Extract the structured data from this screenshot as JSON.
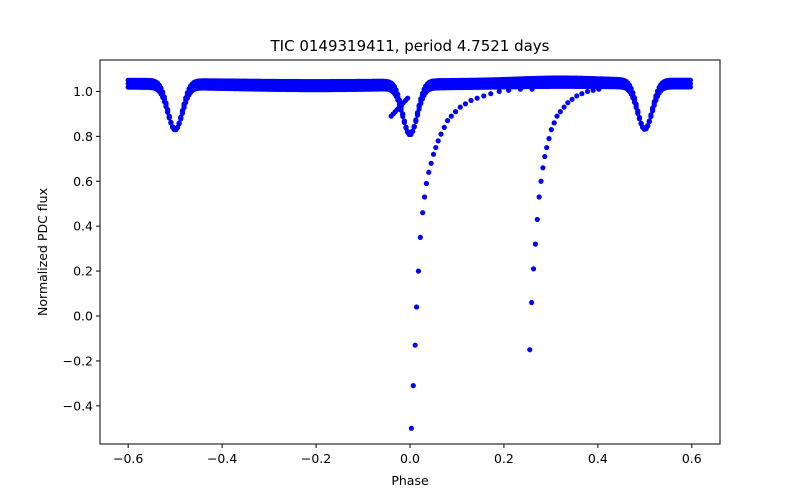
{
  "chart_data": {
    "type": "scatter",
    "title": "TIC 0149319411, period 4.7521 days",
    "xlabel": "Phase",
    "ylabel": "Normalized PDC flux",
    "xlim": [
      -0.66,
      0.66
    ],
    "ylim": [
      -0.57,
      1.14
    ],
    "xticks": [
      -0.6,
      -0.4,
      -0.2,
      0.0,
      0.2,
      0.4,
      0.6
    ],
    "xtick_labels": [
      "−0.6",
      "−0.4",
      "−0.2",
      "0.0",
      "0.2",
      "0.4",
      "0.6"
    ],
    "yticks": [
      -0.4,
      -0.2,
      0.0,
      0.2,
      0.4,
      0.6,
      0.8,
      1.0
    ],
    "ytick_labels": [
      "−0.4",
      "−0.2",
      "0.0",
      "0.2",
      "0.4",
      "0.6",
      "0.8",
      "1.0"
    ],
    "grid": false,
    "marker_color": "#0000ff",
    "baseline_bands": [
      {
        "x": [
          -0.6,
          0.6
        ],
        "y": [
          1.02,
          1.05
        ]
      }
    ],
    "eclipses": [
      {
        "center": -0.5,
        "depth_y": 0.83
      },
      {
        "center": 0.0,
        "depth_y": 0.81
      },
      {
        "center": 0.5,
        "depth_y": 0.83
      }
    ],
    "outburst_tracks": [
      {
        "x": [
          0.003,
          0.007,
          0.011,
          0.014,
          0.018,
          0.022,
          0.027,
          0.031,
          0.035,
          0.04,
          0.045,
          0.05,
          0.055,
          0.06,
          0.066,
          0.073,
          0.08,
          0.088,
          0.097,
          0.107,
          0.118,
          0.13,
          0.143,
          0.157,
          0.172,
          0.19,
          0.21,
          0.235,
          0.26
        ],
        "y": [
          -0.5,
          -0.31,
          -0.13,
          0.04,
          0.2,
          0.35,
          0.46,
          0.53,
          0.59,
          0.64,
          0.68,
          0.72,
          0.75,
          0.78,
          0.81,
          0.84,
          0.87,
          0.89,
          0.91,
          0.93,
          0.945,
          0.96,
          0.97,
          0.98,
          0.99,
          1.0,
          1.005,
          1.01,
          1.01
        ]
      },
      {
        "x": [
          0.255,
          0.259,
          0.263,
          0.267,
          0.271,
          0.275,
          0.279,
          0.283,
          0.287,
          0.291,
          0.296,
          0.301,
          0.307,
          0.313,
          0.32,
          0.328,
          0.336,
          0.345,
          0.355,
          0.366,
          0.378,
          0.39,
          0.402
        ],
        "y": [
          -0.15,
          0.06,
          0.21,
          0.32,
          0.43,
          0.53,
          0.6,
          0.66,
          0.71,
          0.75,
          0.79,
          0.83,
          0.86,
          0.89,
          0.91,
          0.93,
          0.95,
          0.965,
          0.98,
          0.99,
          1.0,
          1.005,
          1.01
        ]
      }
    ],
    "pre_eclipse_segment": {
      "x": [
        -0.04,
        -0.005
      ],
      "y": [
        0.89,
        0.97
      ]
    }
  }
}
